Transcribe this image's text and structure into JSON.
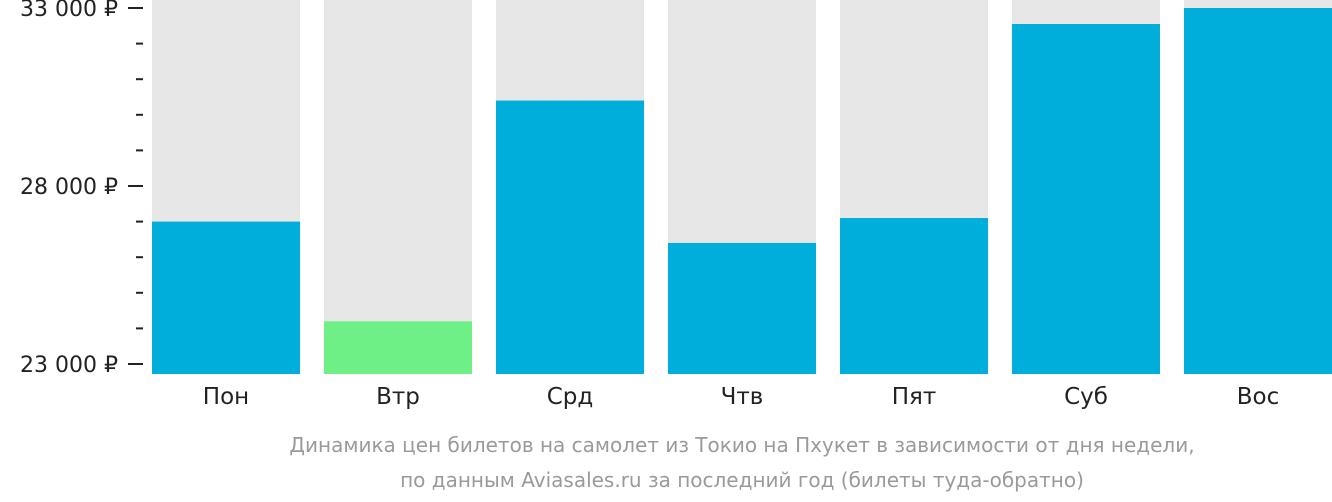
{
  "chart_data": {
    "type": "bar",
    "categories": [
      "Пон",
      "Втр",
      "Срд",
      "Чтв",
      "Пят",
      "Суб",
      "Вос"
    ],
    "values": [
      27000,
      24200,
      30400,
      26400,
      27100,
      32550,
      33000
    ],
    "highlight_index": 1,
    "ylim": [
      23000,
      33000
    ],
    "yticks": [
      23000,
      28000,
      33000
    ],
    "ytick_labels": [
      "23 000 ₽",
      "28 000 ₽",
      "33 000 ₽"
    ],
    "minor_ticks": [
      24000,
      25000,
      26000,
      27000,
      29000,
      30000,
      31000,
      32000
    ],
    "caption": [
      "Динамика цен билетов на самолет из Токио на Пхукет в зависимости от дня недели,",
      "по данным Aviasales.ru за последний год (билеты туда-обратно)"
    ],
    "colors": {
      "bar": "#00aedb",
      "bar_highlight": "#6ef086",
      "bar_background": "#e7e7e7",
      "axis_text": "#222222",
      "caption_text": "#9a9a9a"
    }
  }
}
